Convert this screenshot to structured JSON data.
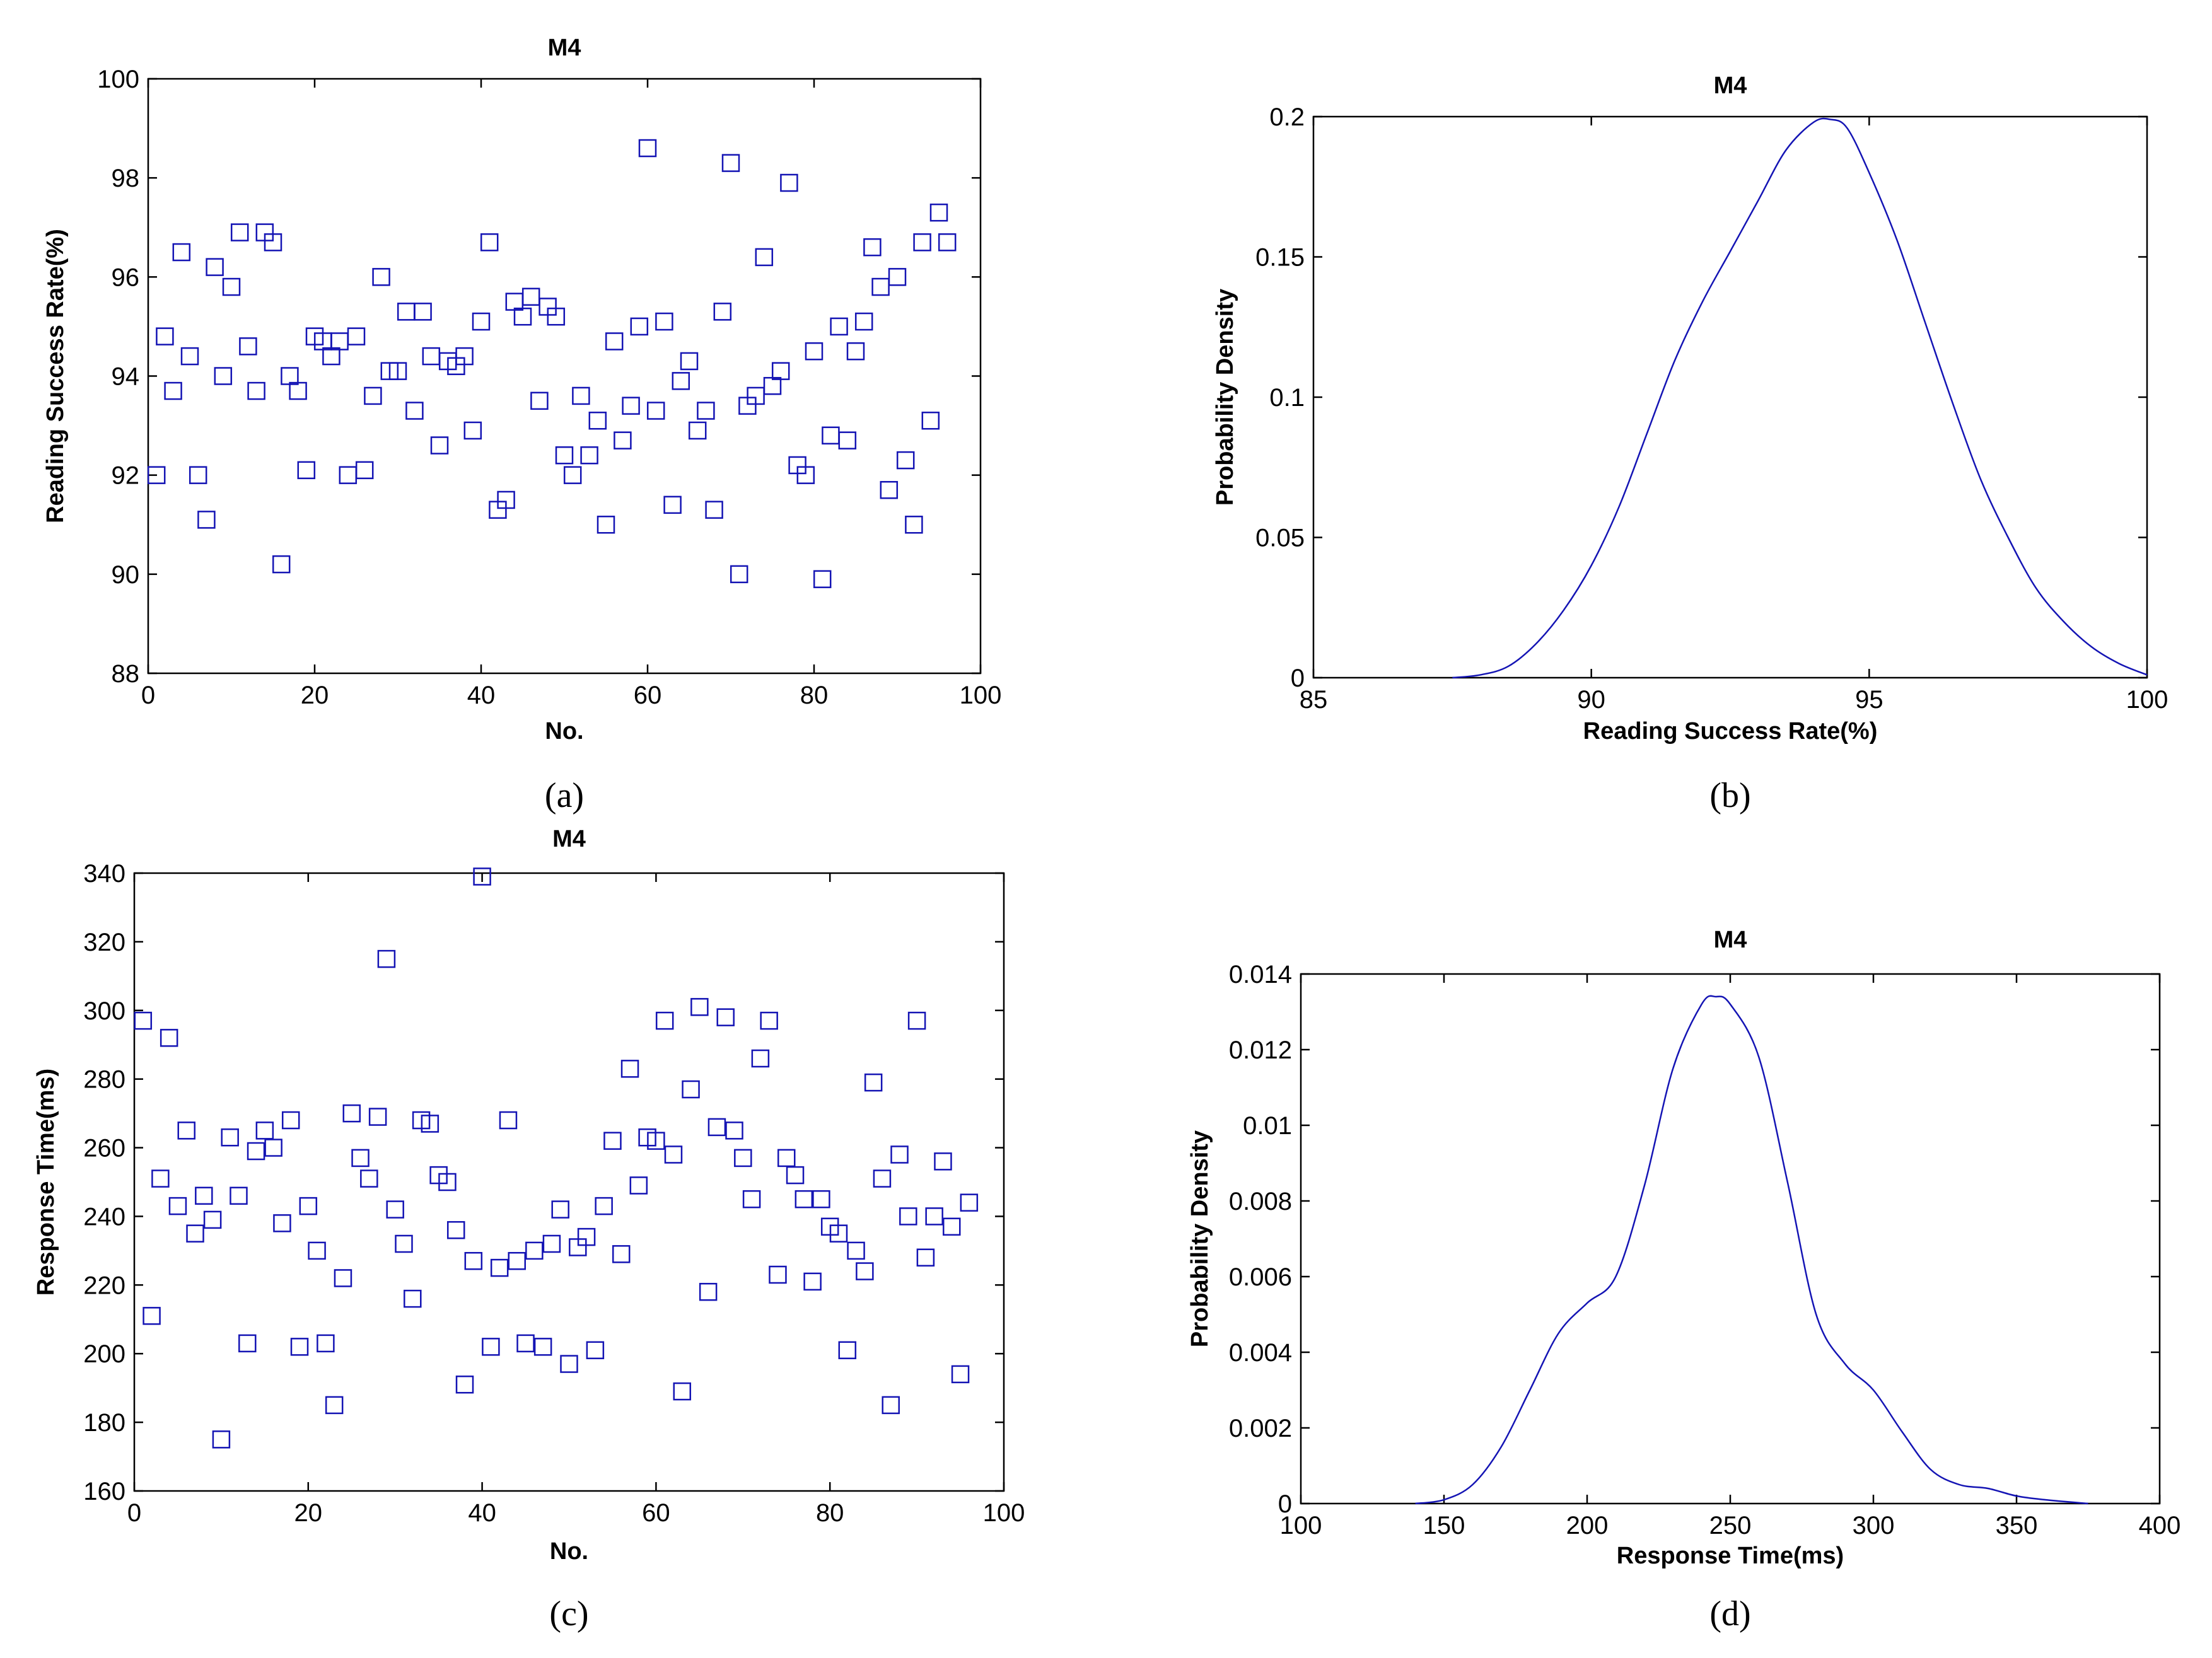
{
  "chart_data": [
    {
      "id": "a",
      "type": "scatter",
      "title": "M4",
      "xlabel": "No.",
      "ylabel": "Reading Success Rate(%)",
      "xlim": [
        0,
        100
      ],
      "ylim": [
        88,
        100
      ],
      "xticks": [
        0,
        20,
        40,
        60,
        80,
        100
      ],
      "yticks": [
        88,
        90,
        92,
        94,
        96,
        98,
        100
      ],
      "panel_label": "(a)",
      "marker": "square",
      "color": "#1414b4",
      "x": [
        1,
        2,
        3,
        4,
        5,
        6,
        7,
        8,
        9,
        10,
        11,
        12,
        13,
        14,
        15,
        16,
        17,
        18,
        19,
        20,
        21,
        22,
        23,
        24,
        25,
        26,
        27,
        28,
        29,
        30,
        31,
        32,
        33,
        34,
        35,
        36,
        37,
        38,
        39,
        40,
        41,
        42,
        43,
        44,
        45,
        46,
        47,
        48,
        49,
        50,
        51,
        52,
        53,
        54,
        55,
        56,
        57,
        58,
        59,
        60,
        61,
        62,
        63,
        64,
        65,
        66,
        67,
        68,
        69,
        70,
        71,
        72,
        73,
        74,
        75,
        76,
        77,
        78,
        79,
        80,
        81,
        82,
        83,
        84,
        85,
        86,
        87,
        88,
        89,
        90,
        91,
        92,
        93,
        94,
        95,
        96
      ],
      "y": [
        92.0,
        94.8,
        93.7,
        96.5,
        94.4,
        92.0,
        91.1,
        96.2,
        94.0,
        95.8,
        96.9,
        94.6,
        93.7,
        96.9,
        96.7,
        90.2,
        94.0,
        93.7,
        92.1,
        94.8,
        94.7,
        94.4,
        94.7,
        92.0,
        94.8,
        92.1,
        93.6,
        96.0,
        94.1,
        94.1,
        95.3,
        93.3,
        95.3,
        94.4,
        92.6,
        94.3,
        94.2,
        94.4,
        92.9,
        95.1,
        96.7,
        91.3,
        91.5,
        95.5,
        95.2,
        95.6,
        93.5,
        95.4,
        95.2,
        92.4,
        92.0,
        93.6,
        92.4,
        93.1,
        91.0,
        94.7,
        92.7,
        93.4,
        95.0,
        98.6,
        93.3,
        95.1,
        91.4,
        93.9,
        94.3,
        92.9,
        93.3,
        91.3,
        95.3,
        98.3,
        90.0,
        93.4,
        93.6,
        96.4,
        93.8,
        94.1,
        97.9,
        92.2,
        92.0,
        94.5,
        89.9,
        92.8,
        95.0,
        92.7,
        94.5,
        95.1,
        96.6,
        95.8,
        91.7,
        96.0,
        92.3,
        91.0,
        96.7,
        93.1,
        97.3,
        96.7
      ]
    },
    {
      "id": "b",
      "type": "line",
      "title": "M4",
      "xlabel": "Reading Success Rate(%)",
      "ylabel": "Probability Density",
      "xlim": [
        85,
        100
      ],
      "ylim": [
        0,
        0.2
      ],
      "xticks": [
        85,
        90,
        95,
        100
      ],
      "yticks": [
        0,
        0.05,
        0.1,
        0.15,
        0.2
      ],
      "ytick_labels": [
        "0",
        "0.05",
        "0.1",
        "0.15",
        "0.2"
      ],
      "panel_label": "(b)",
      "color": "#1414b4",
      "x": [
        87.5,
        88,
        88.5,
        89,
        89.5,
        90,
        90.5,
        91,
        91.5,
        92,
        92.5,
        93,
        93.5,
        94,
        94.3,
        94.6,
        95,
        95.5,
        96,
        96.5,
        97,
        97.5,
        98,
        98.5,
        99,
        99.5,
        100
      ],
      "y": [
        0,
        0.001,
        0.004,
        0.012,
        0.024,
        0.04,
        0.061,
        0.087,
        0.113,
        0.134,
        0.152,
        0.17,
        0.188,
        0.198,
        0.199,
        0.196,
        0.18,
        0.156,
        0.127,
        0.098,
        0.071,
        0.05,
        0.032,
        0.02,
        0.011,
        0.005,
        0.001
      ]
    },
    {
      "id": "c",
      "type": "scatter",
      "title": "M4",
      "xlabel": "No.",
      "ylabel": "Response Time(ms)",
      "xlim": [
        0,
        100
      ],
      "ylim": [
        160,
        340
      ],
      "xticks": [
        0,
        20,
        40,
        60,
        80,
        100
      ],
      "yticks": [
        160,
        180,
        200,
        220,
        240,
        260,
        280,
        300,
        320,
        340
      ],
      "panel_label": "(c)",
      "marker": "square",
      "color": "#1414b4",
      "x": [
        1,
        2,
        3,
        4,
        5,
        6,
        7,
        8,
        9,
        10,
        11,
        12,
        13,
        14,
        15,
        16,
        17,
        18,
        19,
        20,
        21,
        22,
        23,
        24,
        25,
        26,
        27,
        28,
        29,
        30,
        31,
        32,
        33,
        34,
        35,
        36,
        37,
        38,
        39,
        40,
        41,
        42,
        43,
        44,
        45,
        46,
        47,
        48,
        49,
        50,
        51,
        52,
        53,
        54,
        55,
        56,
        57,
        58,
        59,
        60,
        61,
        62,
        63,
        64,
        65,
        66,
        67,
        68,
        69,
        70,
        71,
        72,
        73,
        74,
        75,
        76,
        77,
        78,
        79,
        80,
        81,
        82,
        83,
        84,
        85,
        86,
        87,
        88,
        89,
        90,
        91,
        92,
        93,
        94,
        95,
        96
      ],
      "y": [
        297,
        211,
        251,
        292,
        243,
        265,
        235,
        246,
        239,
        175,
        263,
        246,
        203,
        259,
        265,
        260,
        238,
        268,
        202,
        243,
        230,
        203,
        185,
        222,
        270,
        257,
        251,
        269,
        315,
        242,
        232,
        216,
        268,
        267,
        252,
        250,
        236,
        191,
        227,
        339,
        202,
        225,
        268,
        227,
        203,
        230,
        202,
        232,
        242,
        197,
        231,
        234,
        201,
        243,
        262,
        229,
        283,
        249,
        263,
        262,
        297,
        258,
        189,
        277,
        301,
        218,
        266,
        298,
        265,
        257,
        245,
        286,
        297,
        223,
        257,
        252,
        245,
        221,
        245,
        237,
        235,
        201,
        230,
        224,
        279,
        251,
        185,
        258,
        240,
        297,
        228,
        240,
        256,
        237,
        194,
        244
      ]
    },
    {
      "id": "d",
      "type": "line",
      "title": "M4",
      "xlabel": "Response Time(ms)",
      "ylabel": "Probability Density",
      "xlim": [
        100,
        400
      ],
      "ylim": [
        0,
        0.014
      ],
      "xticks": [
        100,
        150,
        200,
        250,
        300,
        350,
        400
      ],
      "yticks": [
        0,
        0.002,
        0.004,
        0.006,
        0.008,
        0.01,
        0.012,
        0.014
      ],
      "ytick_labels": [
        "0",
        "0.002",
        "0.004",
        "0.006",
        "0.008",
        "0.01",
        "0.012",
        "0.014"
      ],
      "panel_label": "(d)",
      "color": "#1414b4",
      "x": [
        140,
        150,
        160,
        170,
        180,
        190,
        200,
        210,
        220,
        230,
        240,
        245,
        250,
        260,
        270,
        280,
        290,
        300,
        310,
        320,
        330,
        340,
        350,
        360,
        375
      ],
      "y": [
        0,
        0.0001,
        0.0005,
        0.0015,
        0.003,
        0.0045,
        0.0053,
        0.006,
        0.0084,
        0.0115,
        0.0132,
        0.0134,
        0.0132,
        0.0118,
        0.0085,
        0.005,
        0.0037,
        0.003,
        0.0019,
        0.0009,
        0.0005,
        0.0004,
        0.0002,
        0.0001,
        0
      ]
    }
  ]
}
